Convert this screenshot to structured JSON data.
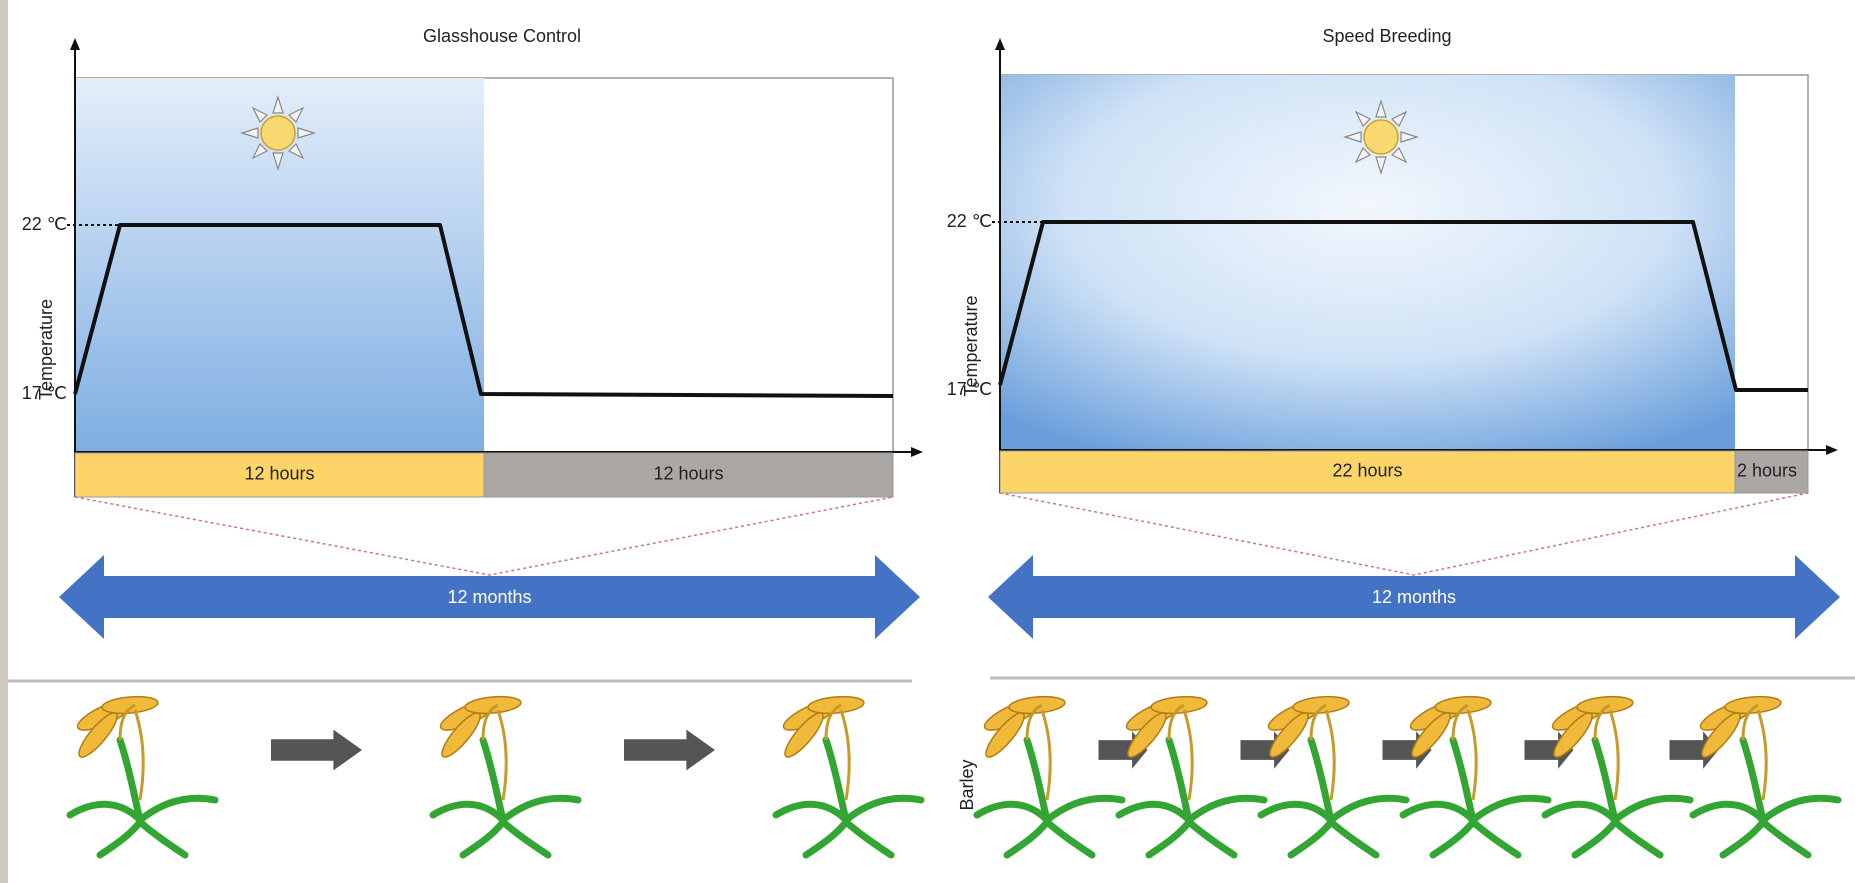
{
  "panels": [
    {
      "title": "Glasshouse Control",
      "y_axis_label": "Temperature",
      "high_temp": "22 ℃",
      "low_temp": "17 ℃",
      "segments": [
        "12 hours",
        "12 hours"
      ],
      "duration": "12 months"
    },
    {
      "title": "Speed Breeding",
      "y_axis_label": "Temperature",
      "high_temp": "22 ℃",
      "low_temp": "17 ℃",
      "segments": [
        "22 hours",
        "2 hours"
      ],
      "duration": "12 months"
    }
  ],
  "crop_label": "Barley"
}
